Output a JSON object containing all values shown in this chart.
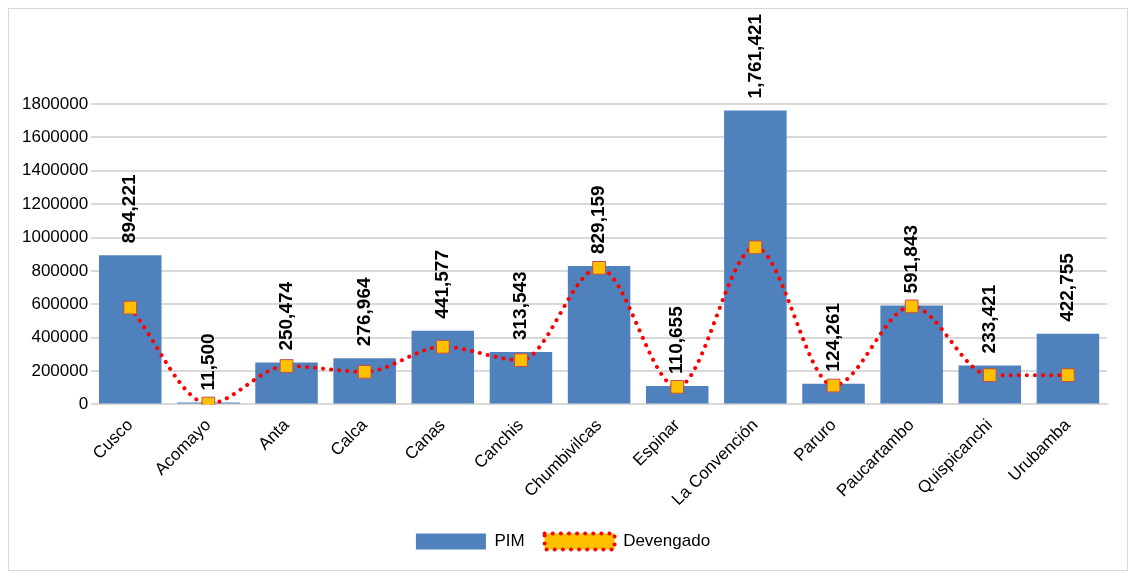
{
  "chart_data": {
    "type": "bar",
    "categories": [
      "Cusco",
      "Acomayo",
      "Anta",
      "Calca",
      "Canas",
      "Canchis",
      "Chumbivilcas",
      "Espinar",
      "La Convención",
      "Paruro",
      "Paucartambo",
      "Quispicanchi",
      "Urubamba"
    ],
    "series": [
      {
        "name": "PIM",
        "color": "#4f81bd",
        "values": [
          894221,
          11500,
          250474,
          276964,
          441577,
          313543,
          829159,
          110655,
          1761421,
          124261,
          591843,
          233421,
          422755
        ],
        "value_labels": [
          "894,221",
          "11,500",
          "250,474",
          "276,964",
          "441,577",
          "313,543",
          "829,159",
          "110,655",
          "1,761,421",
          "124,261",
          "591,843",
          "233,421",
          "422,755"
        ]
      },
      {
        "name": "Devengado",
        "type": "line",
        "color": "#ff0000",
        "line_style": "dotted",
        "marker": "square",
        "values": [
          580000,
          5000,
          230000,
          195000,
          345000,
          265000,
          818000,
          105000,
          941000,
          113000,
          587000,
          175000,
          175000
        ]
      }
    ],
    "ylim": [
      0,
      1800000
    ],
    "yticks": [
      0,
      200000,
      400000,
      600000,
      800000,
      1000000,
      1200000,
      1400000,
      1600000,
      1800000
    ],
    "grid": "y",
    "legend": "bottom"
  }
}
